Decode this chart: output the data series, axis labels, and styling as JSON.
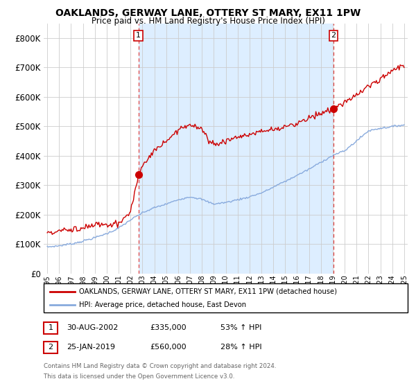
{
  "title": "OAKLANDS, GERWAY LANE, OTTERY ST MARY, EX11 1PW",
  "subtitle": "Price paid vs. HM Land Registry's House Price Index (HPI)",
  "title_fontsize": 10,
  "subtitle_fontsize": 8.5,
  "ytick_values": [
    0,
    100000,
    200000,
    300000,
    400000,
    500000,
    600000,
    700000,
    800000
  ],
  "ylim": [
    0,
    850000
  ],
  "sale1_year": 2002.66,
  "sale1_price": 335000,
  "sale1_label": "1",
  "sale1_date": "30-AUG-2002",
  "sale1_hpi_pct": "53% ↑ HPI",
  "sale2_year": 2019.07,
  "sale2_price": 560000,
  "sale2_label": "2",
  "sale2_date": "25-JAN-2019",
  "sale2_hpi_pct": "28% ↑ HPI",
  "property_color": "#cc0000",
  "hpi_color": "#88aadd",
  "vline_color": "#dd4444",
  "shade_color": "#ddeeff",
  "legend_property_label": "OAKLANDS, GERWAY LANE, OTTERY ST MARY, EX11 1PW (detached house)",
  "legend_hpi_label": "HPI: Average price, detached house, East Devon",
  "footnote1": "Contains HM Land Registry data © Crown copyright and database right 2024.",
  "footnote2": "This data is licensed under the Open Government Licence v3.0.",
  "background_color": "#ffffff",
  "grid_color": "#cccccc",
  "marker_box_color": "#cc0000"
}
